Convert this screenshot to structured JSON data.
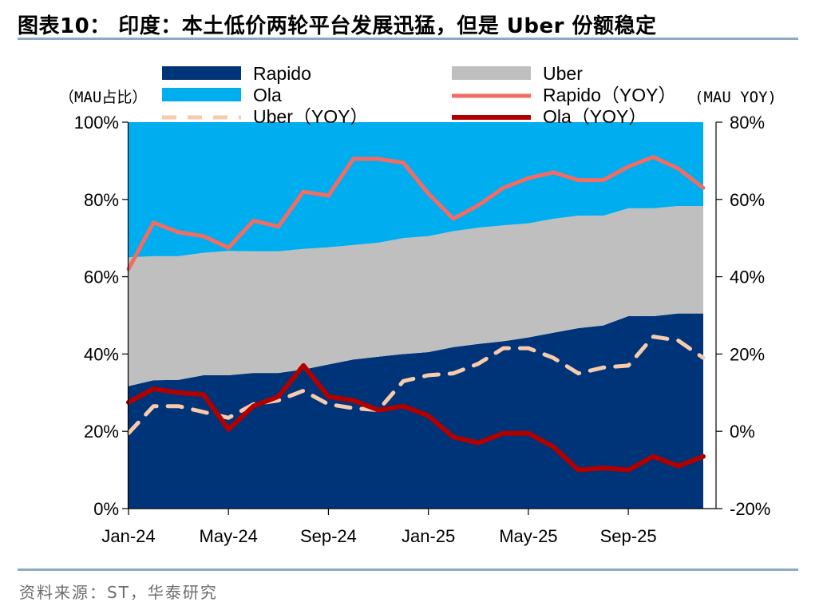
{
  "title": "图表10：  印度：本土低价两轮平台发展迅猛，但是 Uber 份额稳定",
  "source": "资料来源：ST，华泰研究",
  "chart_data": {
    "type": "area",
    "left_unit_label": "（MAU占比）",
    "right_unit_label": "(MAU YOY)",
    "x_ticks": [
      "Jan-24",
      "May-24",
      "Sep-24",
      "Jan-25",
      "May-25",
      "Sep-25"
    ],
    "x": [
      "Jan-24",
      "Feb-24",
      "Mar-24",
      "Apr-24",
      "May-24",
      "Jun-24",
      "Jul-24",
      "Aug-24",
      "Sep-24",
      "Oct-24",
      "Nov-24",
      "Dec-24",
      "Jan-25",
      "Feb-25",
      "Mar-25",
      "Apr-25",
      "May-25",
      "Jun-25",
      "Jul-25",
      "Aug-25",
      "Sep-25",
      "Oct-25",
      "Nov-25",
      "Dec-25"
    ],
    "y_left_ticks": [
      "0%",
      "20%",
      "40%",
      "60%",
      "80%",
      "100%"
    ],
    "y_right_ticks": [
      "-20%",
      "0%",
      "20%",
      "40%",
      "60%",
      "80%"
    ],
    "ylim_left": [
      0,
      100
    ],
    "ylim_right": [
      -20,
      80
    ],
    "area_series": [
      {
        "name": "Rapido",
        "color": "#003478",
        "values": [
          31.7,
          33.2,
          33.3,
          34.5,
          34.5,
          35.1,
          35.1,
          36.0,
          37.3,
          38.6,
          39.3,
          40.0,
          40.5,
          41.8,
          42.6,
          43.3,
          44.3,
          45.5,
          46.7,
          47.4,
          49.8,
          49.8,
          50.5,
          50.5
        ]
      },
      {
        "name": "Uber",
        "color": "#bfbfbf",
        "values": [
          33.3,
          32.1,
          32.0,
          31.7,
          32.2,
          31.5,
          31.5,
          31.2,
          30.3,
          29.6,
          29.5,
          30.0,
          30.0,
          30.0,
          30.1,
          30.0,
          29.5,
          29.5,
          29.1,
          28.4,
          27.9,
          27.9,
          27.8,
          27.8
        ]
      },
      {
        "name": "Ola",
        "color": "#00aeef",
        "values": [
          35.0,
          34.7,
          34.7,
          33.8,
          33.3,
          33.4,
          33.4,
          32.8,
          32.4,
          31.8,
          31.2,
          30.0,
          29.5,
          28.2,
          27.3,
          26.7,
          26.2,
          25.0,
          24.2,
          24.2,
          22.3,
          22.3,
          21.7,
          21.7
        ]
      }
    ],
    "line_series": [
      {
        "name": "Rapido（YOY）",
        "color": "#f26c64",
        "dashed": false,
        "values": [
          42,
          54,
          51.5,
          50.5,
          47.5,
          54.5,
          53,
          62,
          61,
          70.5,
          70.5,
          69.5,
          61.5,
          55,
          58.5,
          63,
          65.5,
          67,
          65,
          65,
          68.5,
          71,
          68,
          63
        ]
      },
      {
        "name": "Uber（YOY）",
        "color": "#f8cbad",
        "dashed": true,
        "values": [
          -0.5,
          6.5,
          6.5,
          5,
          3.5,
          7,
          8,
          10.5,
          7,
          6,
          5.5,
          13,
          14.5,
          15,
          17.5,
          21.5,
          21.5,
          19,
          15,
          16.5,
          17,
          24.5,
          23.5,
          19
        ]
      },
      {
        "name": "Ola（YOY）",
        "color": "#b00000",
        "dashed": false,
        "values": [
          7.5,
          11,
          10,
          9.5,
          0.5,
          6.5,
          9,
          17,
          9,
          8,
          5.5,
          6.5,
          4,
          -1.5,
          -3,
          -0.5,
          -0.5,
          -4,
          -10,
          -9.5,
          -10,
          -6.5,
          -9,
          -6.5
        ]
      }
    ],
    "legend": [
      {
        "label": "Rapido",
        "kind": "box",
        "color": "#003478"
      },
      {
        "label": "Uber",
        "kind": "box",
        "color": "#bfbfbf"
      },
      {
        "label": "Ola",
        "kind": "box",
        "color": "#00aeef"
      },
      {
        "label": "Rapido（YOY）",
        "kind": "line",
        "color": "#f26c64"
      },
      {
        "label": "Uber（YOY）",
        "kind": "dash",
        "color": "#f8cbad"
      },
      {
        "label": "Ola（YOY）",
        "kind": "line",
        "color": "#b00000"
      }
    ],
    "grid": false,
    "legend_position": "top"
  }
}
